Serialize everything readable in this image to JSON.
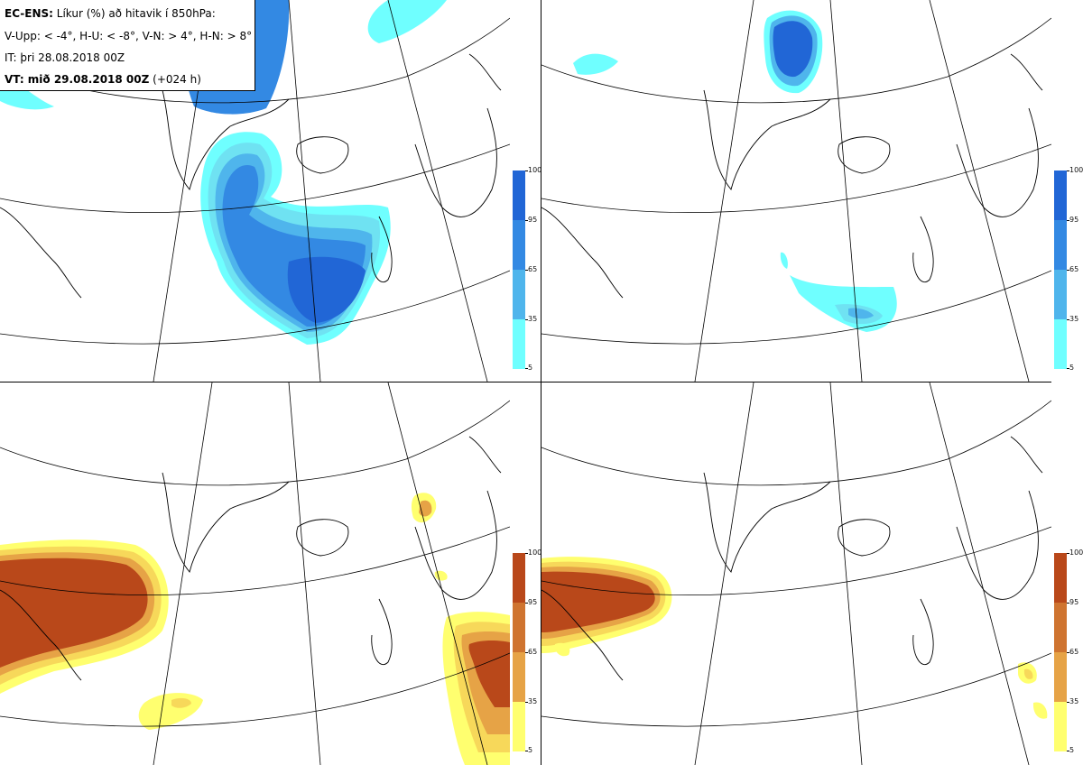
{
  "header": {
    "model_label": "EC-ENS:",
    "title": "Líkur (%) að hitavik í 850hPa:",
    "thresholds": "V-Upp: < -4°, H-U: < -8°, V-N: > 4°, H-N: > 8°",
    "init_time": "IT: þri 28.08.2018 00Z",
    "valid_label": "VT: mið 29.08.2018 00Z",
    "lead_time": "(+024 h)"
  },
  "colorbar_ticks": [
    "100",
    "95",
    "65",
    "35",
    "5"
  ],
  "colors": {
    "cold": [
      "#6fffff",
      "#6fe2f2",
      "#4fb5ec",
      "#3389e3",
      "#2166d6"
    ],
    "warm": [
      "#ffff6f",
      "#f7d85a",
      "#e6a346",
      "#cf7430",
      "#b9481a"
    ],
    "coast": "#000000",
    "grid": "#000000"
  },
  "panels": [
    {
      "id": "V-Upp",
      "scheme": "cold",
      "region": "top-left"
    },
    {
      "id": "H-U",
      "scheme": "cold",
      "region": "top-right"
    },
    {
      "id": "V-N",
      "scheme": "warm",
      "region": "bottom-left"
    },
    {
      "id": "H-N",
      "scheme": "warm",
      "region": "bottom-right"
    }
  ]
}
